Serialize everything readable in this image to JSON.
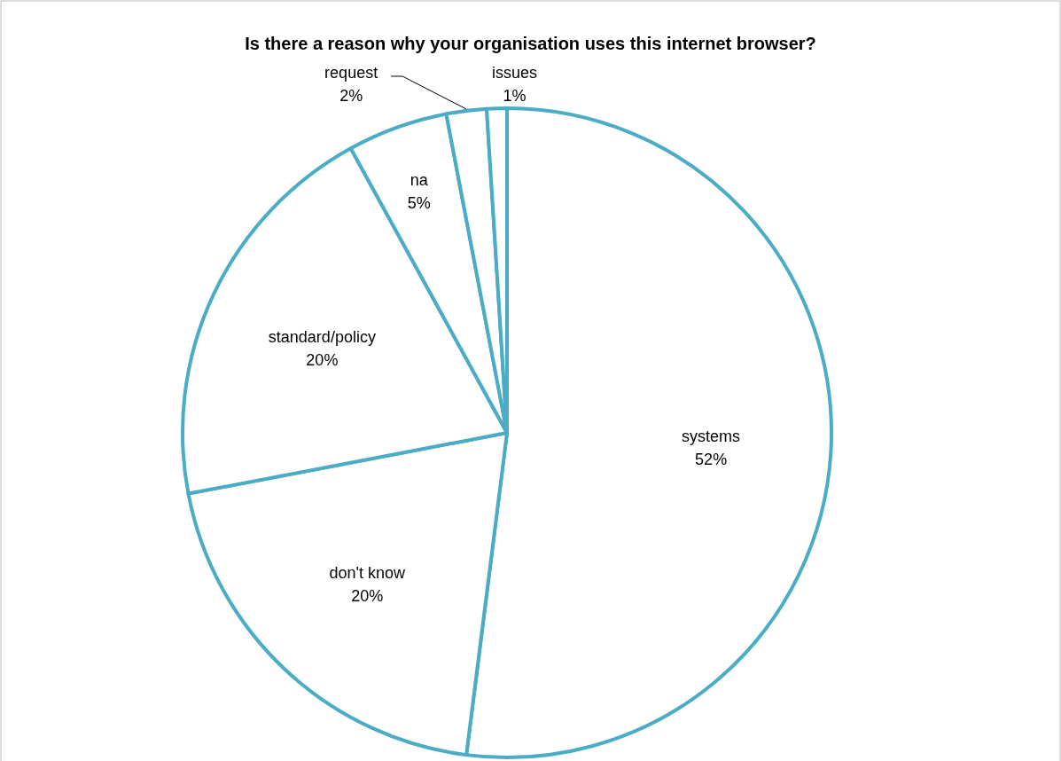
{
  "chart_data": {
    "type": "pie",
    "title": "Is there a reason why your organisation uses this internet browser?",
    "categories": [
      "systems",
      "don't know",
      "standard/policy",
      "na",
      "request",
      "issues"
    ],
    "values": [
      52,
      20,
      20,
      5,
      2,
      1
    ],
    "colors": [
      "#ffffff",
      "#ffffff",
      "#ffffff",
      "#ffffff",
      "#ffffff",
      "#ffffff"
    ],
    "value_labels": [
      "52%",
      "20%",
      "20%",
      "5%",
      "2%",
      "1%"
    ]
  }
}
